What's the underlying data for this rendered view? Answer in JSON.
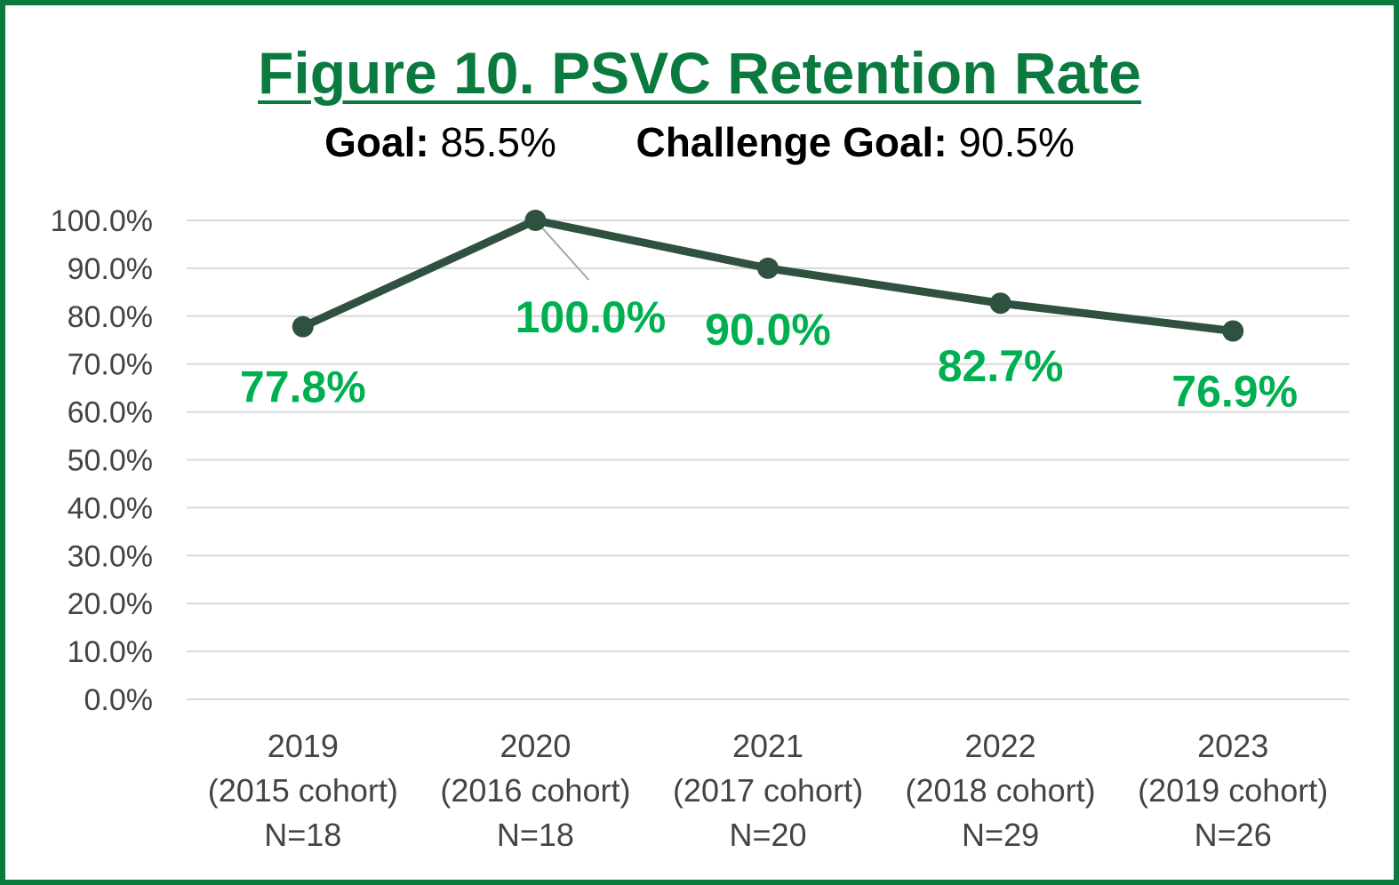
{
  "title": "Figure 10. PSVC Retention Rate",
  "goals": {
    "goal_label": "Goal:",
    "goal_value": "85.5%",
    "challenge_label": "Challenge Goal:",
    "challenge_value": "90.5%"
  },
  "colors": {
    "frame": "#0a7a3e",
    "title": "#0a7a3e",
    "line": "#2f5240",
    "data_label": "#00b050",
    "grid": "#d9d9d9"
  },
  "chart_data": {
    "type": "line",
    "categories": [
      [
        "2019",
        "(2015 cohort)",
        "N=18"
      ],
      [
        "2020",
        "(2016 cohort)",
        "N=18"
      ],
      [
        "2021",
        "(2017 cohort)",
        "N=20"
      ],
      [
        "2022",
        "(2018 cohort)",
        "N=29"
      ],
      [
        "2023",
        "(2019 cohort)",
        "N=26"
      ]
    ],
    "values": [
      77.8,
      100.0,
      90.0,
      82.7,
      76.9
    ],
    "data_labels": [
      "77.8%",
      "100.0%",
      "90.0%",
      "82.7%",
      "76.9%"
    ],
    "ylim": [
      0,
      100
    ],
    "y_ticks": [
      "0.0%",
      "10.0%",
      "20.0%",
      "30.0%",
      "40.0%",
      "50.0%",
      "60.0%",
      "70.0%",
      "80.0%",
      "90.0%",
      "100.0%"
    ],
    "grid": true,
    "legend": "none"
  }
}
